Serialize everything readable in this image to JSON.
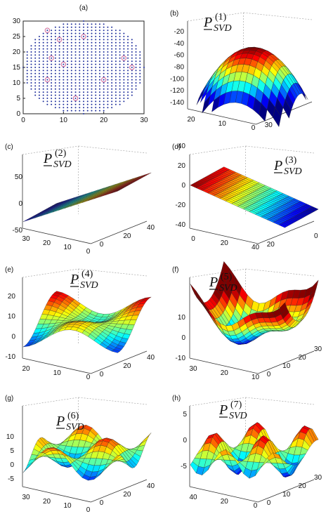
{
  "chart_data": [
    {
      "panel": "(a)",
      "type": "scatter",
      "title": "",
      "xlim": [
        0,
        30
      ],
      "ylim": [
        0,
        30
      ],
      "xticks": [
        "0",
        "10",
        "20",
        "30"
      ],
      "yticks": [
        "0",
        "5",
        "10",
        "15",
        "20",
        "25",
        "30"
      ],
      "grid_points": {
        "center": [
          15,
          15
        ],
        "radius": 15,
        "spacing": 1,
        "color": "#1f2f9c"
      },
      "highlighted_points": [
        {
          "x": 6,
          "y": 27
        },
        {
          "x": 9,
          "y": 24
        },
        {
          "x": 7,
          "y": 18
        },
        {
          "x": 10,
          "y": 16
        },
        {
          "x": 6,
          "y": 11
        },
        {
          "x": 13,
          "y": 5
        },
        {
          "x": 20,
          "y": 11
        },
        {
          "x": 25,
          "y": 18
        },
        {
          "x": 27,
          "y": 15
        },
        {
          "x": 15,
          "y": 25
        }
      ]
    },
    {
      "panel": "(b)",
      "type": "surface",
      "title_main": "P",
      "title_sub": "SVD",
      "title_sup": "(1)",
      "zlim": [
        -140,
        -20
      ],
      "zticks": [
        "-20",
        "-40",
        "-60",
        "-80",
        "-100",
        "-120",
        "-140"
      ],
      "xticks": [
        "20",
        "10",
        "0"
      ],
      "yticks": [
        "30"
      ],
      "shape": "dome"
    },
    {
      "panel": "(c)",
      "type": "surface",
      "title_main": "P",
      "title_sub": "SVD",
      "title_sup": "(2)",
      "zlim": [
        -50,
        50
      ],
      "zticks": [
        "50",
        "0",
        "-50"
      ],
      "xticks": [
        "30",
        "20",
        "10",
        "0"
      ],
      "yticks": [
        "0",
        "20",
        "40"
      ],
      "shape": "ramp"
    },
    {
      "panel": "(d)",
      "type": "surface",
      "title_main": "P",
      "title_sub": "SVD",
      "title_sup": "(3)",
      "zlim": [
        -40,
        40
      ],
      "zticks": [
        "40",
        "20",
        "0",
        "-20",
        "-40"
      ],
      "xticks": [
        "0",
        "20",
        "40"
      ],
      "yticks": [
        "20",
        "0"
      ],
      "shape": "ramp-reverse"
    },
    {
      "panel": "(e)",
      "type": "surface",
      "title_main": "P",
      "title_sub": "SVD",
      "title_sup": "(4)",
      "zlim": [
        -10,
        20
      ],
      "zticks": [
        "20",
        "10",
        "0",
        "-10"
      ],
      "xticks": [
        "20",
        "10",
        "0"
      ],
      "yticks": [
        "0",
        "20",
        "40"
      ],
      "shape": "saddle"
    },
    {
      "panel": "(f)",
      "type": "surface",
      "title_main": "P",
      "title_sub": "SVD",
      "title_sup": "(5)",
      "zlim": [
        -10,
        10
      ],
      "zticks": [
        "10",
        "0",
        "-10"
      ],
      "xticks": [
        "30",
        "20",
        "10"
      ],
      "yticks": [
        "0",
        "10",
        "20",
        "30"
      ],
      "shape": "bowl"
    },
    {
      "panel": "(g)",
      "type": "surface",
      "title_main": "P",
      "title_sub": "SVD",
      "title_sup": "(6)",
      "zlim": [
        -5,
        10
      ],
      "zticks": [
        "10",
        "5",
        "0",
        "-5"
      ],
      "xticks": [
        "30",
        "20",
        "10",
        "0"
      ],
      "yticks": [
        "0",
        "20",
        "40"
      ],
      "shape": "waves"
    },
    {
      "panel": "(h)",
      "type": "surface",
      "title_main": "P",
      "title_sub": "SVD",
      "title_sup": "(7)",
      "zlim": [
        -5,
        5
      ],
      "zticks": [
        "5",
        "0",
        "-5"
      ],
      "xticks": [
        "40",
        "20",
        "0"
      ],
      "yticks": [
        "0",
        "10",
        "20",
        "30"
      ],
      "shape": "ridges"
    }
  ]
}
